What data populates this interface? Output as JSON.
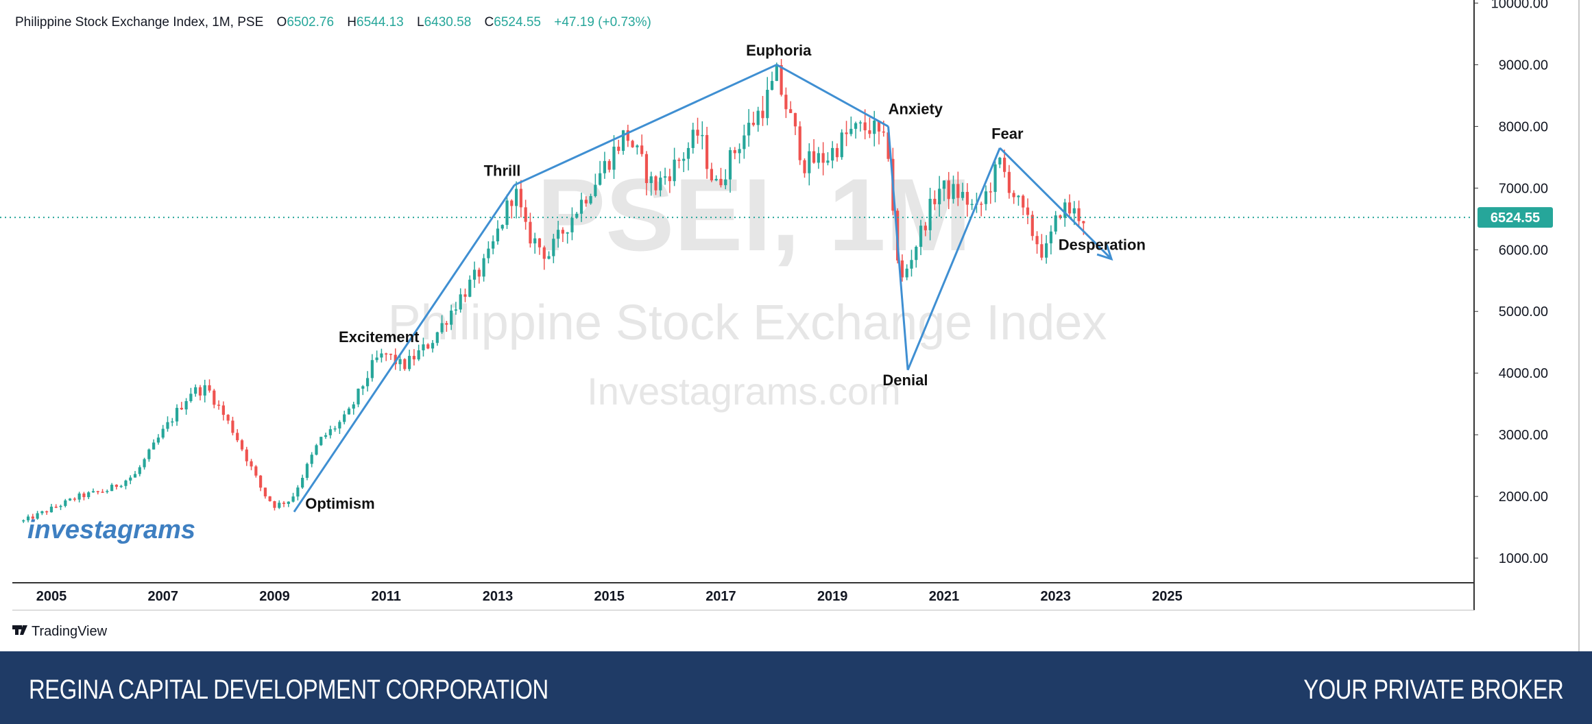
{
  "header": {
    "symbol": "Philippine Stock Exchange Index, 1M, PSE",
    "open_label": "O",
    "open": "6502.76",
    "high_label": "H",
    "high": "6544.13",
    "low_label": "L",
    "low": "6430.58",
    "close_label": "C",
    "close": "6524.55",
    "change": "+47.19 (+0.73%)"
  },
  "watermark": {
    "big": "PSEI, 1M",
    "name": "Philippine Stock Exchange Index",
    "site": "Investagrams.com",
    "logo": "investagrams"
  },
  "price_tag": "6524.55",
  "branding": {
    "tradingview": "TradingView",
    "tv_icon": "tradingview-logo-icon"
  },
  "footer": {
    "left": "REGINA CAPITAL DEVELOPMENT CORPORATION",
    "right": "YOUR PRIVATE BROKER"
  },
  "colors": {
    "up": "#26a69a",
    "down": "#ef5350",
    "trend": "#3f8fd2",
    "footer": "#1f3b66",
    "grid_axis": "#333333",
    "price_tag": "#26a69a"
  },
  "chart_data": {
    "type": "candlestick",
    "title": "Philippine Stock Exchange Index, 1M, PSE",
    "y_axis_labels": [
      "10000.00",
      "9000.00",
      "8000.00",
      "7000.00",
      "6000.00",
      "5000.00",
      "4000.00",
      "3000.00",
      "2000.00",
      "1000.00"
    ],
    "x_axis_labels": [
      "2005",
      "2007",
      "2009",
      "2011",
      "2013",
      "2015",
      "2017",
      "2019",
      "2021",
      "2023",
      "2025"
    ],
    "ylim": [
      600,
      10050
    ],
    "xlim": [
      2004.3,
      2030.5
    ],
    "last_price": 6524.55,
    "price_path": [
      [
        2004.5,
        1600
      ],
      [
        2005.0,
        1800
      ],
      [
        2005.5,
        2000
      ],
      [
        2006.0,
        2100
      ],
      [
        2006.5,
        2350
      ],
      [
        2007.0,
        3050
      ],
      [
        2007.5,
        3700
      ],
      [
        2007.8,
        3750
      ],
      [
        2008.3,
        3000
      ],
      [
        2008.8,
        2050
      ],
      [
        2009.0,
        1850
      ],
      [
        2009.3,
        1950
      ],
      [
        2009.8,
        2900
      ],
      [
        2010.3,
        3300
      ],
      [
        2010.8,
        4200
      ],
      [
        2011.0,
        4300
      ],
      [
        2011.3,
        4100
      ],
      [
        2011.8,
        4500
      ],
      [
        2012.3,
        5200
      ],
      [
        2012.8,
        5800
      ],
      [
        2013.3,
        7000
      ],
      [
        2013.5,
        6300
      ],
      [
        2013.9,
        5900
      ],
      [
        2014.3,
        6500
      ],
      [
        2014.8,
        7200
      ],
      [
        2015.3,
        7900
      ],
      [
        2015.8,
        7000
      ],
      [
        2016.3,
        7500
      ],
      [
        2016.6,
        7900
      ],
      [
        2016.9,
        7000
      ],
      [
        2017.3,
        7700
      ],
      [
        2017.8,
        8400
      ],
      [
        2018.0,
        8800
      ],
      [
        2018.5,
        7400
      ],
      [
        2018.9,
        7500
      ],
      [
        2019.3,
        7900
      ],
      [
        2019.7,
        8000
      ],
      [
        2020.0,
        7600
      ],
      [
        2020.2,
        5400
      ],
      [
        2020.5,
        6100
      ],
      [
        2020.9,
        7000
      ],
      [
        2021.3,
        6900
      ],
      [
        2021.6,
        6600
      ],
      [
        2022.0,
        7400
      ],
      [
        2022.4,
        6600
      ],
      [
        2022.8,
        5900
      ],
      [
        2023.1,
        6700
      ],
      [
        2023.5,
        6520
      ]
    ],
    "trendlines": [
      {
        "from": [
          2009.35,
          1750
        ],
        "to": [
          2013.3,
          7050
        ]
      },
      {
        "from": [
          2013.3,
          7050
        ],
        "to": [
          2018.0,
          9000
        ]
      },
      {
        "from": [
          2018.0,
          9000
        ],
        "to": [
          2020.0,
          8000
        ]
      },
      {
        "from": [
          2020.0,
          8000
        ],
        "to": [
          2020.35,
          4050
        ]
      },
      {
        "from": [
          2020.35,
          4050
        ],
        "to": [
          2022.0,
          7650
        ]
      },
      {
        "from": [
          2022.0,
          7650
        ],
        "to": [
          2024.0,
          5850
        ]
      }
    ],
    "annotations": [
      {
        "text": "Optimism",
        "x": 2009.55,
        "y": 1800
      },
      {
        "text": "Excitement",
        "x": 2010.15,
        "y": 4500
      },
      {
        "text": "Thrill",
        "x": 2012.75,
        "y": 7200
      },
      {
        "text": "Euphoria",
        "x": 2017.45,
        "y": 9150
      },
      {
        "text": "Anxiety",
        "x": 2020.0,
        "y": 8200
      },
      {
        "text": "Denial",
        "x": 2019.9,
        "y": 3800
      },
      {
        "text": "Fear",
        "x": 2021.85,
        "y": 7800
      },
      {
        "text": "Desperation",
        "x": 2023.05,
        "y": 6000
      }
    ]
  }
}
